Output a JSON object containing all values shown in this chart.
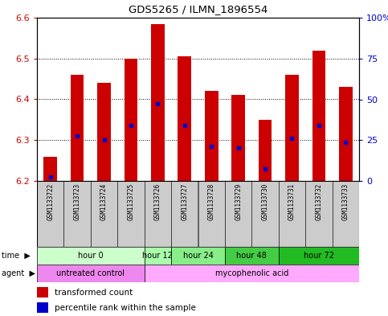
{
  "title": "GDS5265 / ILMN_1896554",
  "samples": [
    "GSM1133722",
    "GSM1133723",
    "GSM1133724",
    "GSM1133725",
    "GSM1133726",
    "GSM1133727",
    "GSM1133728",
    "GSM1133729",
    "GSM1133730",
    "GSM1133731",
    "GSM1133732",
    "GSM1133733"
  ],
  "bar_tops": [
    6.26,
    6.46,
    6.44,
    6.5,
    6.585,
    6.505,
    6.42,
    6.41,
    6.35,
    6.46,
    6.52,
    6.43
  ],
  "bar_bottom": 6.2,
  "percentile_values": [
    6.21,
    6.31,
    6.3,
    6.335,
    6.39,
    6.335,
    6.285,
    6.28,
    6.23,
    6.305,
    6.335,
    6.295
  ],
  "ylim": [
    6.2,
    6.6
  ],
  "yticks_left": [
    6.2,
    6.3,
    6.4,
    6.5,
    6.6
  ],
  "yticks_right": [
    0,
    25,
    50,
    75,
    100
  ],
  "bar_color": "#cc0000",
  "percentile_color": "#0000cc",
  "time_groups": [
    {
      "label": "hour 0",
      "start": 0,
      "end": 4,
      "color": "#ccffcc"
    },
    {
      "label": "hour 12",
      "start": 4,
      "end": 5,
      "color": "#aaffaa"
    },
    {
      "label": "hour 24",
      "start": 5,
      "end": 7,
      "color": "#88ee88"
    },
    {
      "label": "hour 48",
      "start": 7,
      "end": 9,
      "color": "#44cc44"
    },
    {
      "label": "hour 72",
      "start": 9,
      "end": 12,
      "color": "#22bb22"
    }
  ],
  "agent_groups": [
    {
      "label": "untreated control",
      "start": 0,
      "end": 4,
      "color": "#ee88ee"
    },
    {
      "label": "mycophenolic acid",
      "start": 4,
      "end": 12,
      "color": "#ffaaff"
    }
  ],
  "legend1_label": "transformed count",
  "legend2_label": "percentile rank within the sample",
  "left_tick_color": "#cc0000",
  "right_tick_color": "#0000cc",
  "bar_width": 0.5
}
